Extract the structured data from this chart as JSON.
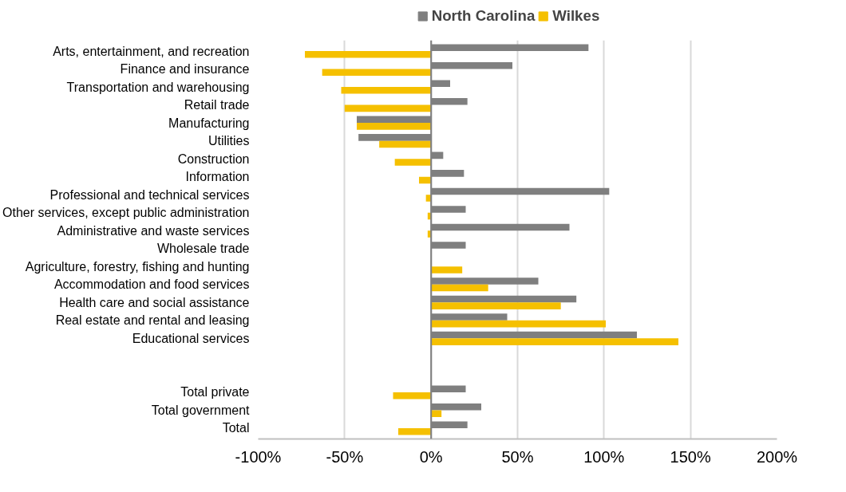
{
  "chart_data": {
    "type": "bar",
    "orientation": "horizontal",
    "categories": [
      "Arts, entertainment, and recreation",
      "Finance and insurance",
      "Transportation and warehousing",
      "Retail trade",
      "Manufacturing",
      "Utilities",
      "Construction",
      "Information",
      "Professional and technical services",
      "Other services, except public administration",
      "Administrative and waste services",
      "Wholesale trade",
      "Agriculture, forestry, fishing and hunting",
      "Accommodation and food services",
      "Health care and social assistance",
      "Real estate and rental and leasing",
      "Educational services",
      null,
      null,
      "Total private",
      "Total government",
      "Total"
    ],
    "series": [
      {
        "name": "North Carolina",
        "color": "#7f7f7f",
        "values": [
          91,
          47,
          11,
          21,
          -43,
          -42,
          7,
          19,
          103,
          20,
          80,
          20,
          0,
          62,
          84,
          44,
          119,
          null,
          null,
          20,
          29,
          21
        ]
      },
      {
        "name": "Wilkes",
        "color": "#f5c000",
        "values": [
          -73,
          -63,
          -52,
          -50,
          -43,
          -30,
          -21,
          -7,
          -3,
          -2,
          -2,
          0,
          18,
          33,
          75,
          101,
          143,
          null,
          null,
          -22,
          6,
          -19
        ]
      }
    ],
    "xlim": [
      -100,
      200
    ],
    "xticks": [
      {
        "value": -100,
        "label": "-100%"
      },
      {
        "value": -50,
        "label": "-50%"
      },
      {
        "value": 0,
        "label": "0%"
      },
      {
        "value": 50,
        "label": "50%"
      },
      {
        "value": 100,
        "label": "100%"
      },
      {
        "value": 150,
        "label": "150%"
      },
      {
        "value": 200,
        "label": "200%"
      }
    ],
    "grid": "x",
    "legend": "top"
  }
}
